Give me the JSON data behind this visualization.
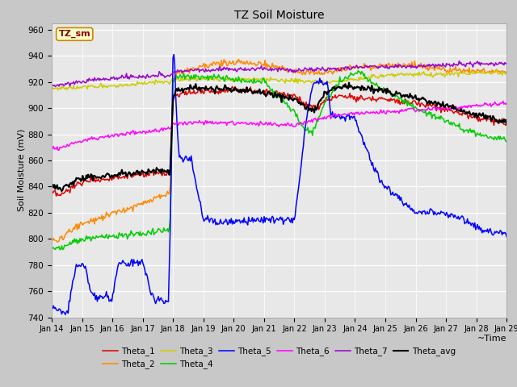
{
  "title": "TZ Soil Moisture",
  "xlabel": "~Time",
  "ylabel": "Soil Moisture (mV)",
  "ylim": [
    740,
    965
  ],
  "yticks": [
    740,
    760,
    780,
    800,
    820,
    840,
    860,
    880,
    900,
    920,
    940,
    960
  ],
  "xtick_labels": [
    "Jan 14",
    "Jan 15",
    "Jan 16",
    "Jan 17",
    "Jan 18",
    "Jan 19",
    "Jan 20",
    "Jan 21",
    "Jan 22",
    "Jan 23",
    "Jan 24",
    "Jan 25",
    "Jan 26",
    "Jan 27",
    "Jan 28",
    "Jan 29"
  ],
  "legend_label": "TZ_sm",
  "series": {
    "Theta_1": {
      "color": "#dd0000"
    },
    "Theta_2": {
      "color": "#ff8800"
    },
    "Theta_3": {
      "color": "#cccc00"
    },
    "Theta_4": {
      "color": "#00cc00"
    },
    "Theta_5": {
      "color": "#0000ff"
    },
    "Theta_6": {
      "color": "#ff00ff"
    },
    "Theta_7": {
      "color": "#9900cc"
    },
    "Theta_avg": {
      "color": "#000000"
    }
  }
}
